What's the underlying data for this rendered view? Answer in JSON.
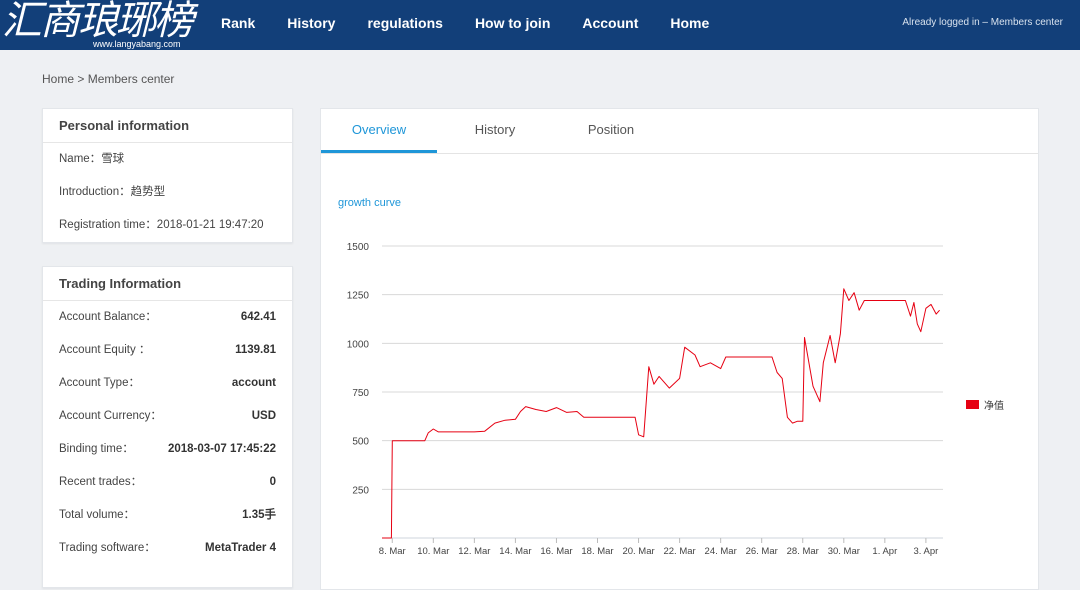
{
  "header": {
    "logo_text": "汇商琅琊榜",
    "logo_url": "www.langyabang.com",
    "nav": [
      "Rank",
      "History",
      "regulations",
      "How to join",
      "Account",
      "Home"
    ],
    "status_text": "Already logged in – Members center"
  },
  "breadcrumb": {
    "home": "Home",
    "separator": ">",
    "current": "Members center"
  },
  "personal": {
    "title": "Personal information",
    "name_label": "Name：",
    "name_value": "雪球",
    "intro_label": "Introduction：",
    "intro_value": "趋势型",
    "reg_label": "Registration time：",
    "reg_value": "2018-01-21 19:47:20"
  },
  "trading": {
    "title": "Trading Information",
    "rows": [
      {
        "label": "Account Balance：",
        "value": "642.41"
      },
      {
        "label": "Account Equity ：",
        "value": "1139.81"
      },
      {
        "label": "Account Type：",
        "value": "account"
      },
      {
        "label": "Account Currency：",
        "value": "USD"
      },
      {
        "label": "Binding time：",
        "value": "2018-03-07 17:45:22"
      },
      {
        "label": "Recent trades：",
        "value": "0"
      },
      {
        "label": "Total volume：",
        "value": "1.35手"
      },
      {
        "label": "Trading software：",
        "value": "MetaTrader 4"
      }
    ]
  },
  "tabs": [
    "Overview",
    "History",
    "Position"
  ],
  "active_tab": "Overview",
  "colors": {
    "nav_bg": "#123f79",
    "accent": "#1e96d8",
    "series": "#e60012"
  },
  "chart_data": {
    "type": "line",
    "title": "growth curve",
    "ylim": [
      0,
      1500
    ],
    "yticks": [
      250,
      500,
      750,
      1000,
      1250,
      1500
    ],
    "xlim": [
      "2018-03-07",
      "2018-04-03"
    ],
    "xticks": [
      "8. Mar",
      "10. Mar",
      "12. Mar",
      "14. Mar",
      "16. Mar",
      "18. Mar",
      "20. Mar",
      "22. Mar",
      "24. Mar",
      "26. Mar",
      "28. Mar",
      "30. Mar",
      "1. Apr",
      "3. Apr"
    ],
    "xtick_dates": [
      "2018-03-08",
      "2018-03-10",
      "2018-03-12",
      "2018-03-14",
      "2018-03-16",
      "2018-03-18",
      "2018-03-20",
      "2018-03-22",
      "2018-03-24",
      "2018-03-26",
      "2018-03-28",
      "2018-03-30",
      "2018-04-01",
      "2018-04-03"
    ],
    "grid": true,
    "legend_position": "right",
    "series": [
      {
        "name": "净值",
        "color": "#e60012",
        "points": [
          [
            "2018-03-07T12:00",
            0
          ],
          [
            "2018-03-07T23:00",
            0
          ],
          [
            "2018-03-08T00:00",
            500
          ],
          [
            "2018-03-09T14:00",
            500
          ],
          [
            "2018-03-09T18:00",
            540
          ],
          [
            "2018-03-10T00:00",
            560
          ],
          [
            "2018-03-10T06:00",
            545
          ],
          [
            "2018-03-11T00:00",
            545
          ],
          [
            "2018-03-12T00:00",
            545
          ],
          [
            "2018-03-12T12:00",
            548
          ],
          [
            "2018-03-13T00:00",
            590
          ],
          [
            "2018-03-13T12:00",
            605
          ],
          [
            "2018-03-14T00:00",
            610
          ],
          [
            "2018-03-14T06:00",
            650
          ],
          [
            "2018-03-14T12:00",
            675
          ],
          [
            "2018-03-15T00:00",
            660
          ],
          [
            "2018-03-15T12:00",
            650
          ],
          [
            "2018-03-16T00:00",
            670
          ],
          [
            "2018-03-16T12:00",
            645
          ],
          [
            "2018-03-17T00:00",
            650
          ],
          [
            "2018-03-17T08:00",
            620
          ],
          [
            "2018-03-19T00:00",
            620
          ],
          [
            "2018-03-19T20:00",
            620
          ],
          [
            "2018-03-20T00:00",
            530
          ],
          [
            "2018-03-20T06:00",
            520
          ],
          [
            "2018-03-20T12:00",
            880
          ],
          [
            "2018-03-20T18:00",
            790
          ],
          [
            "2018-03-21T00:00",
            830
          ],
          [
            "2018-03-21T12:00",
            770
          ],
          [
            "2018-03-22T00:00",
            820
          ],
          [
            "2018-03-22T06:00",
            980
          ],
          [
            "2018-03-22T18:00",
            940
          ],
          [
            "2018-03-23T00:00",
            880
          ],
          [
            "2018-03-23T12:00",
            900
          ],
          [
            "2018-03-24T00:00",
            870
          ],
          [
            "2018-03-24T06:00",
            930
          ],
          [
            "2018-03-26T12:00",
            930
          ],
          [
            "2018-03-26T18:00",
            850
          ],
          [
            "2018-03-27T00:00",
            820
          ],
          [
            "2018-03-27T06:00",
            620
          ],
          [
            "2018-03-27T12:00",
            590
          ],
          [
            "2018-03-27T18:00",
            600
          ],
          [
            "2018-03-28T00:00",
            600
          ],
          [
            "2018-03-28T02:00",
            1030
          ],
          [
            "2018-03-28T12:00",
            780
          ],
          [
            "2018-03-28T20:00",
            700
          ],
          [
            "2018-03-29T00:00",
            900
          ],
          [
            "2018-03-29T08:00",
            1040
          ],
          [
            "2018-03-29T14:00",
            900
          ],
          [
            "2018-03-29T20:00",
            1050
          ],
          [
            "2018-03-30T00:00",
            1280
          ],
          [
            "2018-03-30T06:00",
            1220
          ],
          [
            "2018-03-30T12:00",
            1260
          ],
          [
            "2018-03-30T18:00",
            1170
          ],
          [
            "2018-03-31T00:00",
            1220
          ],
          [
            "2018-04-01T00:00",
            1220
          ],
          [
            "2018-04-02T00:00",
            1220
          ],
          [
            "2018-04-02T06:00",
            1140
          ],
          [
            "2018-04-02T10:00",
            1210
          ],
          [
            "2018-04-02T14:00",
            1100
          ],
          [
            "2018-04-02T18:00",
            1060
          ],
          [
            "2018-04-03T00:00",
            1180
          ],
          [
            "2018-04-03T06:00",
            1200
          ],
          [
            "2018-04-03T12:00",
            1150
          ],
          [
            "2018-04-03T16:00",
            1170
          ]
        ]
      }
    ]
  }
}
